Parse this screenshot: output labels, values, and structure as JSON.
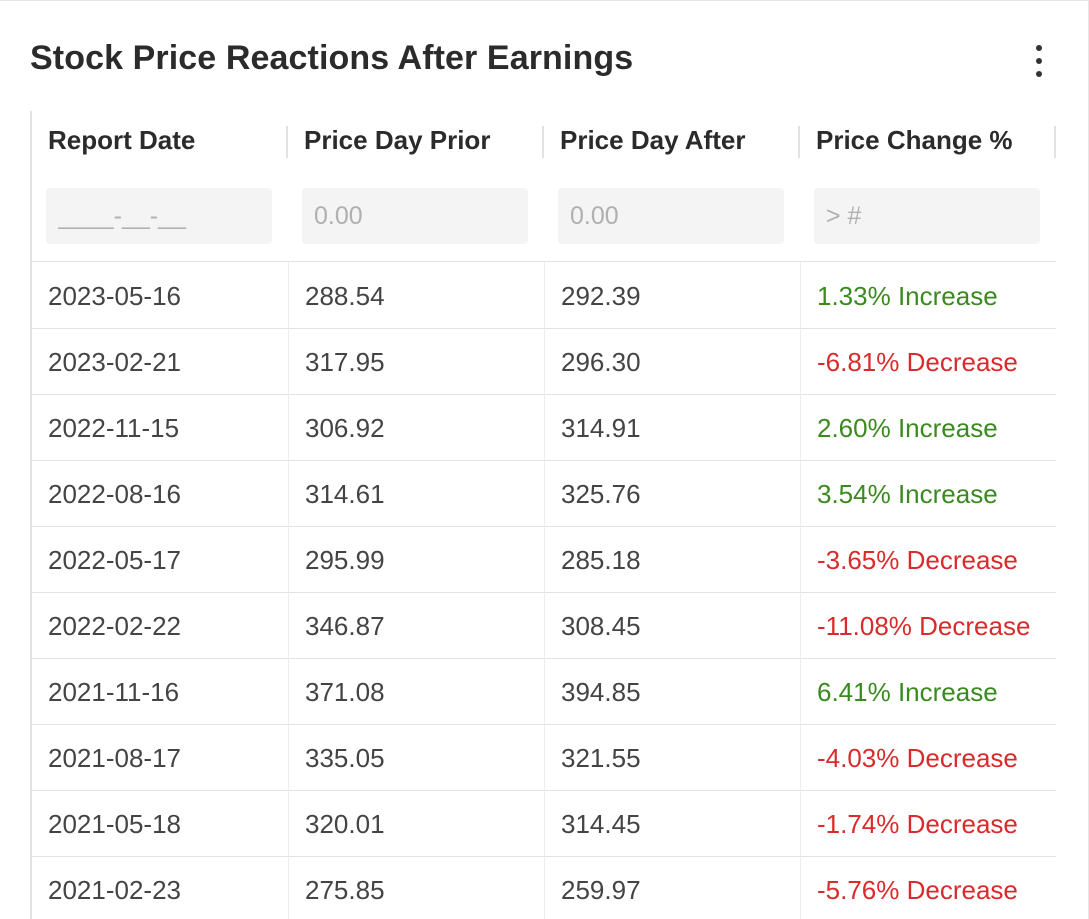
{
  "title": "Stock Price Reactions After Earnings",
  "menu_icon": "more-vertical-icon",
  "colors": {
    "increase": "#3a8a1f",
    "decrease": "#d92b2b",
    "header_text": "#2b2b2b",
    "filter_bg": "#f4f4f4"
  },
  "columns": [
    {
      "label": "Report Date",
      "filter_placeholder": "____-__-__"
    },
    {
      "label": "Price Day Prior",
      "filter_placeholder": "0.00"
    },
    {
      "label": "Price Day After",
      "filter_placeholder": "0.00"
    },
    {
      "label": "Price Change %",
      "filter_placeholder": "> #"
    }
  ],
  "rows": [
    {
      "date": "2023-05-16",
      "prior": "288.54",
      "after": "292.39",
      "change": "1.33% Increase",
      "direction": "increase"
    },
    {
      "date": "2023-02-21",
      "prior": "317.95",
      "after": "296.30",
      "change": "-6.81% Decrease",
      "direction": "decrease"
    },
    {
      "date": "2022-11-15",
      "prior": "306.92",
      "after": "314.91",
      "change": "2.60% Increase",
      "direction": "increase"
    },
    {
      "date": "2022-08-16",
      "prior": "314.61",
      "after": "325.76",
      "change": "3.54% Increase",
      "direction": "increase"
    },
    {
      "date": "2022-05-17",
      "prior": "295.99",
      "after": "285.18",
      "change": "-3.65% Decrease",
      "direction": "decrease"
    },
    {
      "date": "2022-02-22",
      "prior": "346.87",
      "after": "308.45",
      "change": "-11.08% Decrease",
      "direction": "decrease"
    },
    {
      "date": "2021-11-16",
      "prior": "371.08",
      "after": "394.85",
      "change": "6.41% Increase",
      "direction": "increase"
    },
    {
      "date": "2021-08-17",
      "prior": "335.05",
      "after": "321.55",
      "change": "-4.03% Decrease",
      "direction": "decrease"
    },
    {
      "date": "2021-05-18",
      "prior": "320.01",
      "after": "314.45",
      "change": "-1.74% Decrease",
      "direction": "decrease"
    },
    {
      "date": "2021-02-23",
      "prior": "275.85",
      "after": "259.97",
      "change": "-5.76% Decrease",
      "direction": "decrease"
    }
  ]
}
